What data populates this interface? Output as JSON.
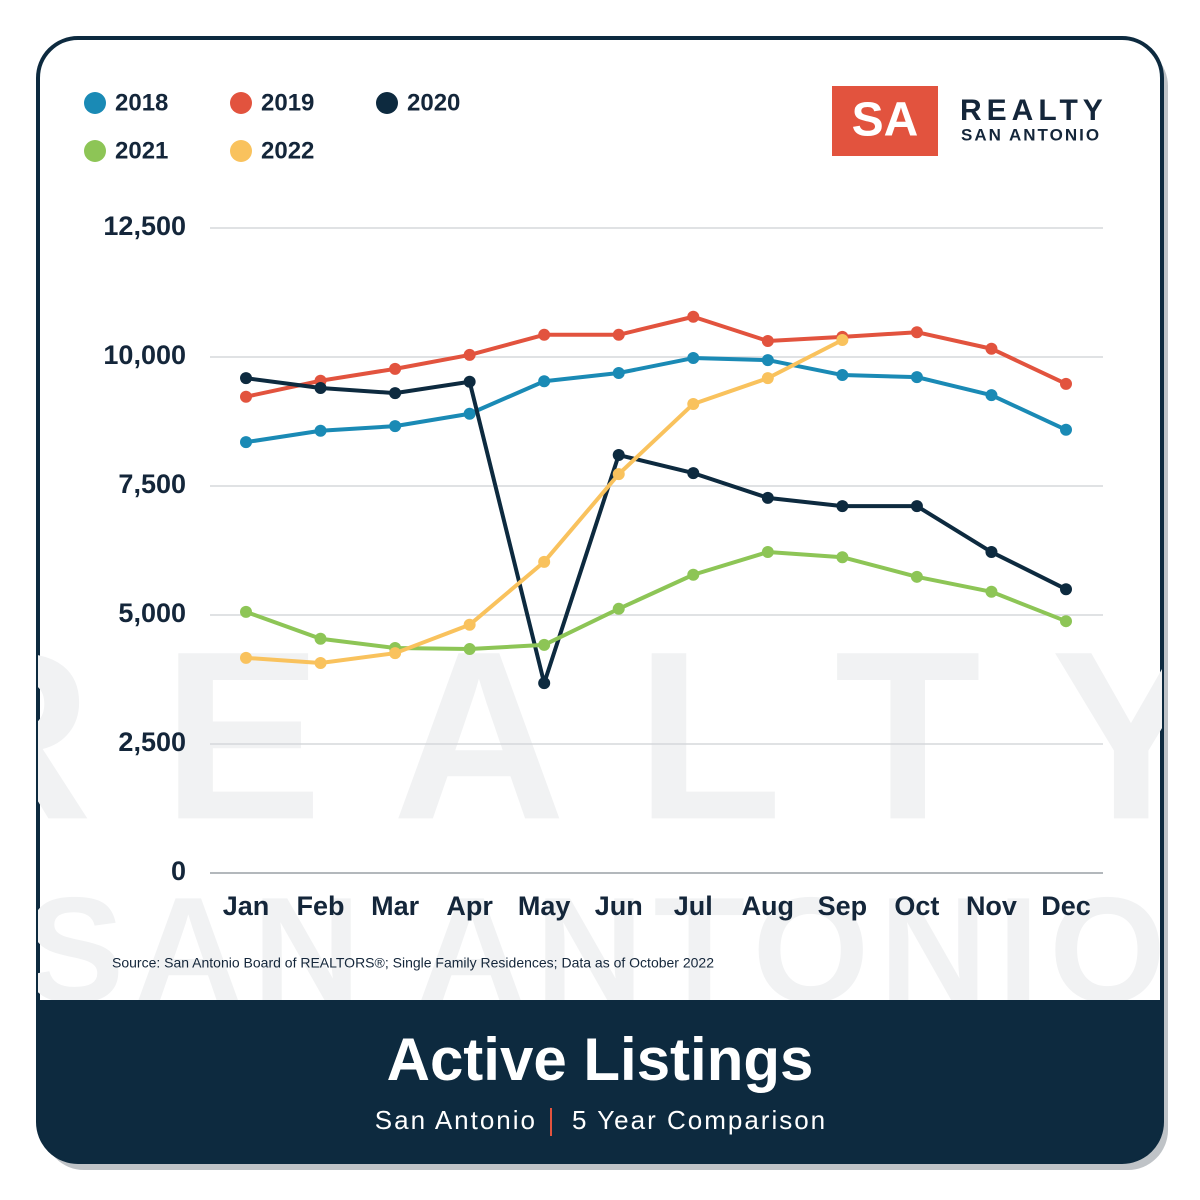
{
  "chart_data": {
    "type": "line",
    "title": "Active Listings",
    "subtitle": [
      "San Antonio",
      "5 Year Comparison"
    ],
    "source": "Source: San Antonio Board of REALTORS®; Single Family Residences; Data as of October 2022",
    "categories": [
      "Jan",
      "Feb",
      "Mar",
      "Apr",
      "May",
      "Jun",
      "Jul",
      "Aug",
      "Sep",
      "Oct",
      "Nov",
      "Dec"
    ],
    "ylim": [
      0,
      12500
    ],
    "yticks": [
      0,
      {
        "value": 2500,
        "label": "2,500"
      },
      {
        "value": 5000,
        "label": "5,000"
      },
      {
        "value": 7500,
        "label": "7,500"
      },
      {
        "value": 10000,
        "label": "10,000"
      },
      {
        "value": 12500,
        "label": "12,500"
      }
    ],
    "grid": true,
    "series": [
      {
        "name": "2018",
        "color": "#1a8ab5",
        "values": [
          8350,
          8570,
          8660,
          8900,
          9530,
          9690,
          9980,
          9940,
          9650,
          9610,
          9260,
          8590
        ]
      },
      {
        "name": "2019",
        "color": "#e2533e",
        "values": [
          9230,
          9540,
          9770,
          10040,
          10430,
          10430,
          10780,
          10310,
          10390,
          10480,
          10160,
          9480
        ]
      },
      {
        "name": "2020",
        "color": "#0d2a3f",
        "values": [
          9590,
          9400,
          9300,
          9520,
          3680,
          8100,
          7750,
          7270,
          7110,
          7110,
          6220,
          5500
        ]
      },
      {
        "name": "2021",
        "color": "#8dc556",
        "values": [
          5060,
          4540,
          4360,
          4340,
          4420,
          5120,
          5780,
          6220,
          6120,
          5740,
          5450,
          4880
        ]
      },
      {
        "name": "2022",
        "color": "#f9c25d",
        "values": [
          4170,
          4070,
          4260,
          4810,
          6030,
          7730,
          9090,
          9590,
          10330,
          null,
          null,
          null
        ]
      }
    ]
  },
  "logo": {
    "mark": "SA",
    "name": "REALTY",
    "city": "SAN ANTONIO"
  },
  "watermark": [
    "REALTY",
    "SAN ANTONIO"
  ]
}
